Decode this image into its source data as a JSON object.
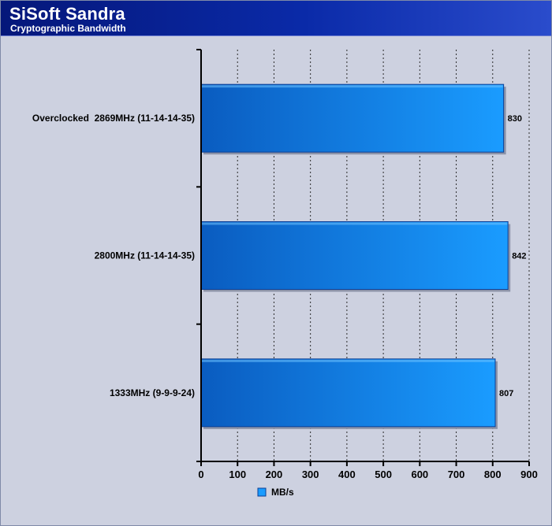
{
  "header": {
    "title": "SiSoft Sandra",
    "subtitle": "Cryptographic Bandwidth"
  },
  "colors": {
    "bar_dark": "#0a5cc0",
    "bar_light": "#1a9cff",
    "bar_edge": "#0a3f96",
    "plot_bg": "#cdd1e0",
    "header_bg": "#0a2aa8"
  },
  "chart_data": {
    "type": "bar",
    "orientation": "horizontal",
    "title": "SiSoft Sandra",
    "subtitle": "Cryptographic Bandwidth",
    "categories": [
      "Overclocked  2869MHz (11-14-14-35)",
      "2800MHz (11-14-14-35)",
      "1333MHz (9-9-9-24)"
    ],
    "series": [
      {
        "name": "MB/s",
        "values": [
          830,
          842,
          807
        ]
      }
    ],
    "xlim": [
      0,
      900
    ],
    "x_ticks": [
      0,
      100,
      200,
      300,
      400,
      500,
      600,
      700,
      800,
      900
    ],
    "grid": {
      "vertical": true,
      "style": "dotted"
    },
    "legend": {
      "position": "bottom-center",
      "labels": [
        "MB/s"
      ]
    }
  }
}
